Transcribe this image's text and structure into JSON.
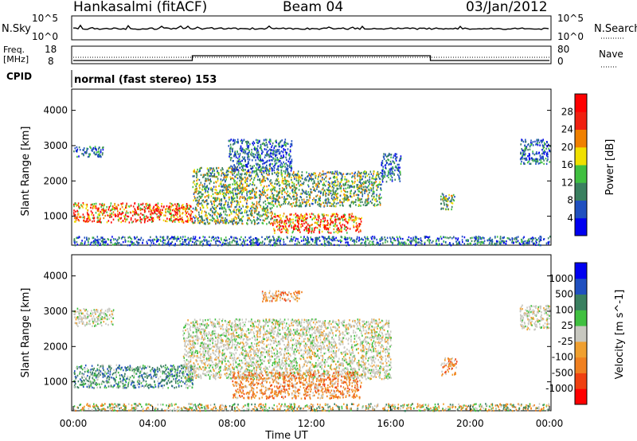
{
  "header": {
    "station": "Hankasalmi (fitACF)",
    "beam": "Beam 04",
    "date": "03/Jan/2012"
  },
  "strips": {
    "nsky_label": "N.Sky",
    "nsky_ticks": [
      "10^5",
      "10^0"
    ],
    "nsearch_label": "N.Search",
    "nsearch_ticks": [
      "10^5",
      "10^0"
    ],
    "freq_label": "Freq.",
    "freq_unit": "[MHz]",
    "freq_ticks": [
      "18",
      "8"
    ],
    "nave_label": "Nave",
    "nave_ticks": [
      "80",
      "0"
    ],
    "cpid_label": "CPID",
    "cpid_text": "normal (fast stereo) 153"
  },
  "chart_data": [
    {
      "type": "heatmap",
      "name": "power",
      "ylabel": "Slant Range [km]",
      "xlabel": "",
      "ylim": [
        180,
        4600
      ],
      "xlim": [
        0,
        24
      ],
      "yticks": [
        1000,
        2000,
        3000,
        4000
      ],
      "colorbar": {
        "label": "Power [dB]",
        "ticks": [
          "28",
          "24",
          "20",
          "16",
          "12",
          "8",
          "4"
        ],
        "colors": [
          "#0000f0",
          "#2050c0",
          "#3a8060",
          "#40c040",
          "#f0e000",
          "#f08000",
          "#f02010",
          "#ff0000"
        ]
      },
      "regions": [
        {
          "t0": 0.0,
          "t1": 6.0,
          "r0": 850,
          "r1": 1400,
          "level": "high"
        },
        {
          "t0": 0.0,
          "t1": 1.5,
          "r0": 2700,
          "r1": 3000,
          "level": "low"
        },
        {
          "t0": 6.0,
          "t1": 10.0,
          "r0": 800,
          "r1": 2400,
          "level": "mid"
        },
        {
          "t0": 10.0,
          "t1": 14.5,
          "r0": 550,
          "r1": 1100,
          "level": "high"
        },
        {
          "t0": 7.8,
          "t1": 11.0,
          "r0": 2300,
          "r1": 3200,
          "level": "low"
        },
        {
          "t0": 10.0,
          "t1": 15.5,
          "r0": 1300,
          "r1": 2300,
          "level": "mid"
        },
        {
          "t0": 15.5,
          "t1": 16.5,
          "r0": 2000,
          "r1": 2800,
          "level": "low"
        },
        {
          "t0": 18.5,
          "t1": 19.2,
          "r0": 1200,
          "r1": 1700,
          "level": "mid"
        },
        {
          "t0": 22.5,
          "t1": 24.0,
          "r0": 2500,
          "r1": 3200,
          "level": "low"
        },
        {
          "t0": 0.0,
          "t1": 24.0,
          "r0": 200,
          "r1": 450,
          "level": "low"
        }
      ]
    },
    {
      "type": "heatmap",
      "name": "velocity",
      "ylabel": "Slant Range [km]",
      "xlabel": "Time UT",
      "ylim": [
        180,
        4600
      ],
      "xlim": [
        0,
        24
      ],
      "yticks": [
        1000,
        2000,
        3000,
        4000
      ],
      "xticks": [
        "00:00",
        "04:00",
        "08:00",
        "12:00",
        "16:00",
        "20:00",
        "00:00"
      ],
      "colorbar": {
        "label": "Velocity [m s^-1]",
        "ticks": [
          "1000",
          "500",
          "100",
          "25",
          "-25",
          "-100",
          "-500",
          "-1000"
        ],
        "colors": [
          "#ff0000",
          "#f04010",
          "#f08020",
          "#f0a030",
          "#c8c8c0",
          "#40c040",
          "#3a8060",
          "#2050c0",
          "#0000f0"
        ]
      },
      "regions": [
        {
          "t0": 0.0,
          "t1": 6.0,
          "r0": 850,
          "r1": 1500,
          "level": "pos"
        },
        {
          "t0": 0.0,
          "t1": 2.0,
          "r0": 2600,
          "r1": 3100,
          "level": "zero"
        },
        {
          "t0": 5.5,
          "t1": 16.0,
          "r0": 1100,
          "r1": 2800,
          "level": "zero"
        },
        {
          "t0": 8.0,
          "t1": 14.5,
          "r0": 550,
          "r1": 1300,
          "level": "neg"
        },
        {
          "t0": 9.5,
          "t1": 11.5,
          "r0": 3300,
          "r1": 3600,
          "level": "neg"
        },
        {
          "t0": 18.5,
          "t1": 19.3,
          "r0": 1200,
          "r1": 1700,
          "level": "neg"
        },
        {
          "t0": 22.5,
          "t1": 24.0,
          "r0": 2500,
          "r1": 3200,
          "level": "zero"
        },
        {
          "t0": 0.0,
          "t1": 24.0,
          "r0": 200,
          "r1": 400,
          "level": "mixed"
        }
      ]
    }
  ]
}
